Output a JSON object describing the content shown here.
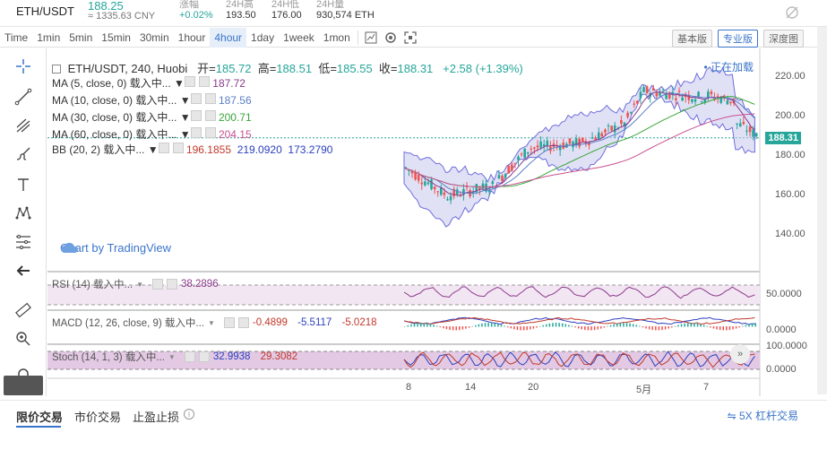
{
  "header": {
    "pair": "ETH/USDT",
    "price": "188.25",
    "cny": "≈ 1335.63 CNY",
    "stats": [
      {
        "label": "涨幅",
        "value": "+0.02%",
        "up": true
      },
      {
        "label": "24H高",
        "value": "193.50",
        "up": false
      },
      {
        "label": "24H低",
        "value": "176.00",
        "up": false
      },
      {
        "label": "24H量",
        "value": "930,574 ETH",
        "up": false
      }
    ],
    "icon": "eye-off-icon"
  },
  "toolbar": {
    "timeframes": [
      "Time",
      "1min",
      "5min",
      "15min",
      "30min",
      "1hour",
      "4hour",
      "1day",
      "1week",
      "1mon"
    ],
    "active_timeframe": "4hour",
    "icons": [
      "candlestick-icon",
      "settings-icon",
      "fullscreen-icon"
    ],
    "views": [
      "基本版",
      "专业版",
      "深度图"
    ],
    "active_view": "专业版"
  },
  "left_tools": [
    "crosshair-icon",
    "trendline-icon",
    "fork-icon",
    "brush-icon",
    "text-icon",
    "pattern-icon",
    "fib-icon",
    "arrow-back-icon",
    "ruler-icon",
    "zoom-icon",
    "magnet-icon"
  ],
  "legend": {
    "symbol": "ETH/USDT, 240, Huobi",
    "open_label": "开=",
    "open": "185.72",
    "high_label": "高=",
    "high": "188.51",
    "low_label": "低=",
    "low": "185.55",
    "close_label": "收=",
    "close": "188.31",
    "change": "+2.58 (+1.39%)",
    "loading": "正在加载",
    "ma": [
      {
        "label": "MA (5, close, 0) 载入中...",
        "value": "187.72",
        "color": "#8b3a8b"
      },
      {
        "label": "MA (10, close, 0) 载入中...",
        "value": "187.56",
        "color": "#5a7fc7"
      },
      {
        "label": "MA (30, close, 0) 载入中...",
        "value": "200.71",
        "color": "#3aa63a"
      },
      {
        "label": "MA (60, close, 0) 载入中...",
        "value": "204.15",
        "color": "#c7518f"
      }
    ],
    "bb": {
      "label": "BB (20, 2) 载入中...",
      "v1": "196.1855",
      "v2": "219.0920",
      "v3": "173.2790"
    }
  },
  "tv_logo": "Chart by TradingView",
  "price_axis": [
    "220.00",
    "200.00",
    "180.00",
    "160.00",
    "140.00"
  ],
  "last_price_badge": "188.31",
  "rsi": {
    "label": "RSI (14) 载入中...",
    "value": "38.2896",
    "axis": "50.0000"
  },
  "macd": {
    "label": "MACD (12, 26, close, 9) 载入中...",
    "v1": "-0.4899",
    "v2": "-5.5117",
    "v3": "-5.0218",
    "axis": "0.0000"
  },
  "stoch": {
    "label": "Stoch (14, 1, 3) 载入中...",
    "v1": "32.9938",
    "v2": "29.3082",
    "axis_top": "100.0000",
    "axis_bottom": "0.0000"
  },
  "date_axis": [
    "8",
    "14",
    "20",
    "5月",
    "7"
  ],
  "bottom_tabs": [
    "限价交易",
    "市价交易",
    "止盈止损"
  ],
  "active_bottom_tab": "限价交易",
  "leverage": "5X 杠杆交易"
}
